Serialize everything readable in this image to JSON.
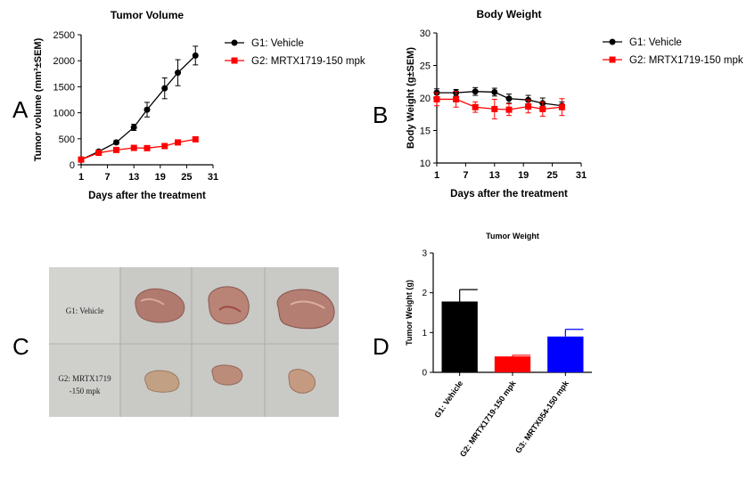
{
  "panels": {
    "a": "A",
    "b": "B",
    "c": "C",
    "d": "D"
  },
  "photo": {
    "label_g1": "G1: Vehicle",
    "label_g2_line1": "G2: MRTX1719",
    "label_g2_line2": "-150 mpk"
  },
  "colors": {
    "vehicle": "#000000",
    "mrtx1719": "#ff0000",
    "mrtx054": "#0000ff"
  },
  "chart_data": [
    {
      "id": "tumor_volume",
      "type": "line",
      "title": "Tumor Volume",
      "xlabel": "Days after the treatment",
      "ylabel": "Tumor volume  (mm³±SEM)",
      "xticks": [
        1,
        7,
        13,
        19,
        25,
        31
      ],
      "yticks": [
        0,
        500,
        1000,
        1500,
        2000,
        2500
      ],
      "xlim": [
        1,
        31
      ],
      "ylim": [
        0,
        2500
      ],
      "legend_position": "right",
      "series": [
        {
          "name": "G1: Vehicle",
          "color": "#000000",
          "marker": "circle",
          "x": [
            1,
            5,
            9,
            13,
            16,
            20,
            23,
            27
          ],
          "y": [
            100,
            255,
            430,
            720,
            1060,
            1470,
            1770,
            2100
          ],
          "err": [
            15,
            25,
            35,
            60,
            140,
            200,
            250,
            180
          ]
        },
        {
          "name": "G2: MRTX1719-150 mpk",
          "color": "#ff0000",
          "marker": "square",
          "x": [
            1,
            5,
            9,
            13,
            16,
            20,
            23,
            27
          ],
          "y": [
            100,
            230,
            285,
            325,
            320,
            360,
            430,
            490
          ],
          "err": [
            10,
            15,
            20,
            25,
            25,
            25,
            30,
            30
          ]
        }
      ]
    },
    {
      "id": "body_weight",
      "type": "line",
      "title": "Body Weight",
      "xlabel": "Days after the treatment",
      "ylabel": "Body Weight (g±SEM)",
      "xticks": [
        1,
        7,
        13,
        19,
        25,
        31
      ],
      "yticks": [
        10,
        15,
        20,
        25,
        30
      ],
      "xlim": [
        1,
        31
      ],
      "ylim": [
        10,
        30
      ],
      "legend_position": "right",
      "series": [
        {
          "name": "G1: Vehicle",
          "color": "#000000",
          "marker": "circle",
          "x": [
            1,
            5,
            9,
            13,
            16,
            20,
            23,
            27
          ],
          "y": [
            20.8,
            20.8,
            21.0,
            20.9,
            19.9,
            19.7,
            19.2,
            18.8
          ],
          "err": [
            0.6,
            0.5,
            0.6,
            0.6,
            0.7,
            0.7,
            0.8,
            0.6
          ]
        },
        {
          "name": "G2: MRTX1719-150 mpk",
          "color": "#ff0000",
          "marker": "square",
          "x": [
            1,
            5,
            9,
            13,
            16,
            20,
            23,
            27
          ],
          "y": [
            19.8,
            19.8,
            18.6,
            18.3,
            18.2,
            18.7,
            18.3,
            18.6
          ],
          "err": [
            1.0,
            1.2,
            0.8,
            1.5,
            0.9,
            1.0,
            1.1,
            1.3
          ]
        }
      ]
    },
    {
      "id": "tumor_weight",
      "type": "bar",
      "title": "Tumor Weight",
      "xlabel": "",
      "ylabel": "Tumor Weight  (g)",
      "yticks": [
        0,
        1,
        2,
        3
      ],
      "ylim": [
        0,
        3
      ],
      "categories": [
        "G1: Vehicle",
        "G2: MRTX1719-150 mpk",
        "G3: MRTX054-150 mpk"
      ],
      "values": [
        1.78,
        0.4,
        0.9
      ],
      "err": [
        0.3,
        0.03,
        0.18
      ],
      "colors": [
        "#000000",
        "#ff0000",
        "#0000ff"
      ]
    }
  ]
}
